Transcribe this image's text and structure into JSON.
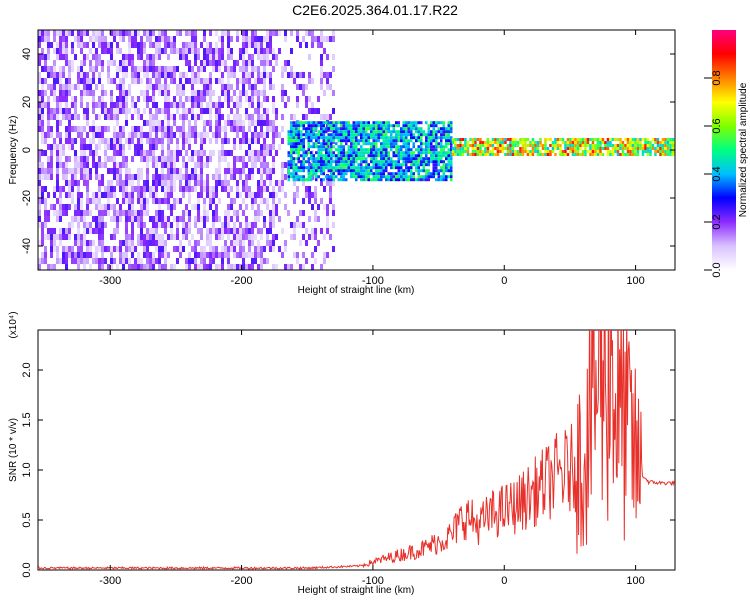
{
  "title": "C2E6.2025.364.01.17.R22",
  "chart_data": [
    {
      "type": "heatmap",
      "xlabel": "Height of straight line (km)",
      "ylabel": "Frequency (Hz)",
      "xlim": [
        -355,
        130
      ],
      "ylim": [
        -50,
        50
      ],
      "xticks": [
        -300,
        -200,
        -100,
        0,
        100
      ],
      "yticks": [
        -40,
        -20,
        0,
        20,
        40
      ],
      "colorbar": {
        "label": "Normalized spectral amplitude",
        "range": [
          0,
          1
        ],
        "ticks": [
          0.0,
          0.2,
          0.4,
          0.6,
          0.8
        ],
        "colors": [
          "#ffffff",
          "#d9c2ff",
          "#8c2cff",
          "#0000ff",
          "#00bfff",
          "#00ff80",
          "#80ff00",
          "#ffff00",
          "#ff8000",
          "#ff0000",
          "#ff0080"
        ]
      },
      "regions": [
        {
          "x": [
            -355,
            -130
          ],
          "freq": [
            -50,
            50
          ],
          "amplitude": [
            0.05,
            0.25
          ],
          "description": "broadband noise"
        },
        {
          "x": [
            -165,
            -40
          ],
          "freq": [
            -12,
            12
          ],
          "amplitude": [
            0.25,
            0.55
          ]
        },
        {
          "x": [
            -40,
            130
          ],
          "freq": [
            -2,
            5
          ],
          "amplitude": [
            0.4,
            0.9
          ]
        }
      ]
    },
    {
      "type": "line",
      "xlabel": "Height of straight line (km)",
      "ylabel": "SNR (10 * v/v)",
      "y_multiplier": "(x10⁴)",
      "xlim": [
        -355,
        130
      ],
      "ylim": [
        0,
        2.4
      ],
      "xticks": [
        -300,
        -200,
        -100,
        0,
        100
      ],
      "yticks": [
        0.0,
        0.5,
        1.0,
        1.5,
        2.0
      ],
      "color": "#e8302a",
      "series": [
        {
          "x": [
            -355,
            -150,
            -110,
            -100,
            -80,
            -60,
            -40,
            -30,
            -20,
            -10,
            0,
            10,
            20,
            30,
            40,
            50,
            60,
            65,
            70,
            75,
            80,
            85,
            90,
            95,
            100,
            105,
            110,
            120,
            130
          ],
          "y": [
            0.02,
            0.02,
            0.04,
            0.08,
            0.15,
            0.22,
            0.35,
            0.55,
            0.45,
            0.55,
            0.6,
            0.65,
            0.75,
            0.85,
            0.95,
            1.0,
            1.1,
            1.6,
            1.9,
            2.0,
            2.4,
            1.7,
            1.5,
            1.4,
            1.1,
            0.95,
            0.88,
            0.87,
            0.87
          ]
        }
      ]
    }
  ]
}
